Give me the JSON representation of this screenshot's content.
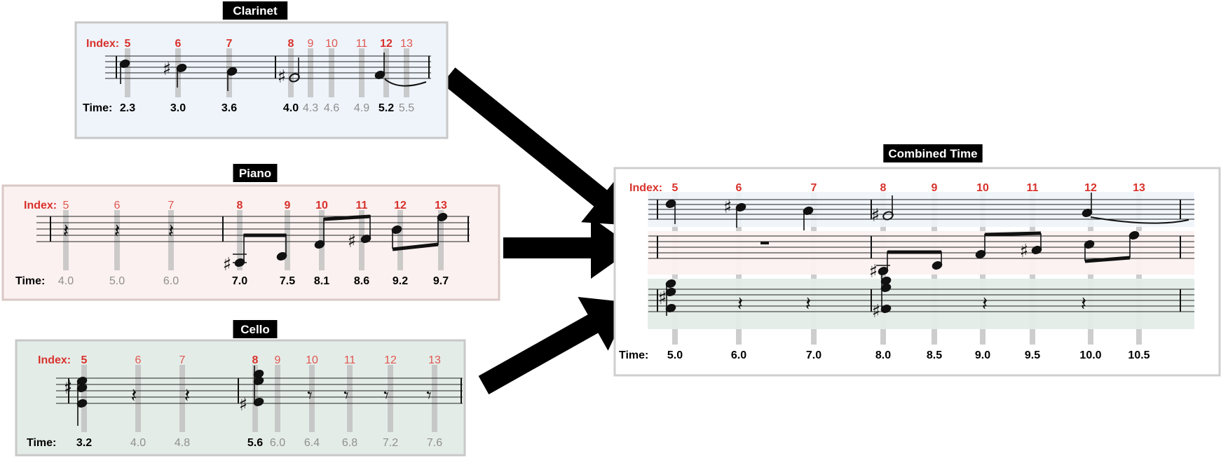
{
  "colors": {
    "index_red": "#d8322c",
    "clarinet_bg": "#eef4fa",
    "piano_bg": "#fbf1f0",
    "cello_bg": "#e4ece8",
    "guide_gray": "#bcbcbc",
    "arrow": "#000000"
  },
  "labels": {
    "index": "Index:",
    "time": "Time:"
  },
  "panels": [
    {
      "key": "clarinet",
      "title": "Clarinet",
      "indices": [
        {
          "v": "5",
          "strong": true
        },
        {
          "v": "6",
          "strong": true
        },
        {
          "v": "7",
          "strong": true
        },
        {
          "v": "8",
          "strong": true
        },
        {
          "v": "9",
          "strong": false
        },
        {
          "v": "10",
          "strong": false
        },
        {
          "v": "11",
          "strong": false
        },
        {
          "v": "12",
          "strong": true
        },
        {
          "v": "13",
          "strong": false
        }
      ],
      "times": [
        {
          "v": "2.3",
          "strong": true
        },
        {
          "v": "3.0",
          "strong": true
        },
        {
          "v": "3.6",
          "strong": true
        },
        {
          "v": "4.0",
          "strong": true
        },
        {
          "v": "4.3",
          "strong": false
        },
        {
          "v": "4.6",
          "strong": false
        },
        {
          "v": "4.9",
          "strong": false
        },
        {
          "v": "5.2",
          "strong": true
        },
        {
          "v": "5.5",
          "strong": false
        }
      ]
    },
    {
      "key": "piano",
      "title": "Piano",
      "indices": [
        {
          "v": "5",
          "strong": false
        },
        {
          "v": "6",
          "strong": false
        },
        {
          "v": "7",
          "strong": false
        },
        {
          "v": "8",
          "strong": true
        },
        {
          "v": "9",
          "strong": true
        },
        {
          "v": "10",
          "strong": true
        },
        {
          "v": "11",
          "strong": true
        },
        {
          "v": "12",
          "strong": true
        },
        {
          "v": "13",
          "strong": true
        }
      ],
      "times": [
        {
          "v": "4.0",
          "strong": false
        },
        {
          "v": "5.0",
          "strong": false
        },
        {
          "v": "6.0",
          "strong": false
        },
        {
          "v": "7.0",
          "strong": true
        },
        {
          "v": "7.5",
          "strong": true
        },
        {
          "v": "8.1",
          "strong": true
        },
        {
          "v": "8.6",
          "strong": true
        },
        {
          "v": "9.2",
          "strong": true
        },
        {
          "v": "9.7",
          "strong": true
        }
      ]
    },
    {
      "key": "cello",
      "title": "Cello",
      "indices": [
        {
          "v": "5",
          "strong": true
        },
        {
          "v": "6",
          "strong": false
        },
        {
          "v": "7",
          "strong": false
        },
        {
          "v": "8",
          "strong": true
        },
        {
          "v": "9",
          "strong": false
        },
        {
          "v": "10",
          "strong": false
        },
        {
          "v": "11",
          "strong": false
        },
        {
          "v": "12",
          "strong": false
        },
        {
          "v": "13",
          "strong": false
        }
      ],
      "times": [
        {
          "v": "3.2",
          "strong": true
        },
        {
          "v": "4.0",
          "strong": false
        },
        {
          "v": "4.8",
          "strong": false
        },
        {
          "v": "5.6",
          "strong": true
        },
        {
          "v": "6.0",
          "strong": false
        },
        {
          "v": "6.4",
          "strong": false
        },
        {
          "v": "6.8",
          "strong": false
        },
        {
          "v": "7.2",
          "strong": false
        },
        {
          "v": "7.6",
          "strong": false
        }
      ]
    },
    {
      "key": "combined",
      "title": "Combined Time",
      "indices": [
        {
          "v": "5",
          "strong": true
        },
        {
          "v": "6",
          "strong": true
        },
        {
          "v": "7",
          "strong": true
        },
        {
          "v": "8",
          "strong": true
        },
        {
          "v": "9",
          "strong": true
        },
        {
          "v": "10",
          "strong": true
        },
        {
          "v": "11",
          "strong": true
        },
        {
          "v": "12",
          "strong": true
        },
        {
          "v": "13",
          "strong": true
        }
      ],
      "times": [
        {
          "v": "5.0",
          "strong": true
        },
        {
          "v": "6.0",
          "strong": true
        },
        {
          "v": "7.0",
          "strong": true
        },
        {
          "v": "8.0",
          "strong": true
        },
        {
          "v": "8.5",
          "strong": true
        },
        {
          "v": "9.0",
          "strong": true
        },
        {
          "v": "9.5",
          "strong": true
        },
        {
          "v": "10.0",
          "strong": true
        },
        {
          "v": "10.5",
          "strong": true
        }
      ]
    }
  ],
  "icons": {
    "arrows": "arrow-right-icon",
    "sharp": "sharp-glyph",
    "rest": "quarter-rest-glyph"
  }
}
